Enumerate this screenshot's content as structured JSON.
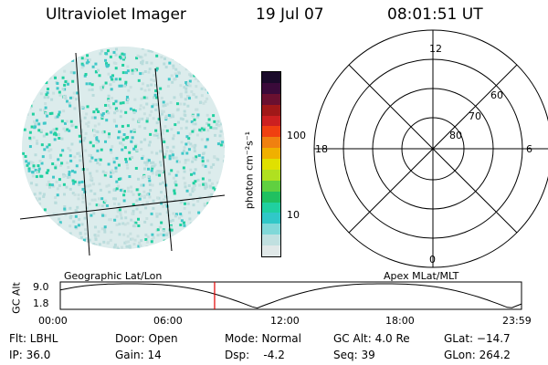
{
  "header": {
    "title": "Ultraviolet Imager",
    "date": "19 Jul 07",
    "time": "08:01:51 UT"
  },
  "colorbar": {
    "label": "photon cm⁻²s⁻¹",
    "ticks": [
      "100",
      "10"
    ],
    "colors": [
      "#1a0a2a",
      "#3a0a3a",
      "#6a1030",
      "#a01818",
      "#cc2020",
      "#f04010",
      "#f08010",
      "#f0b000",
      "#e0e000",
      "#b0e020",
      "#60d040",
      "#20c060",
      "#20d0a0",
      "#30c8c8",
      "#80d8d8",
      "#c0e0e0",
      "#e0e8e8"
    ]
  },
  "polar": {
    "labels_mlt": [
      "12",
      "18",
      "6",
      "0"
    ],
    "labels_lat": [
      "60",
      "70",
      "80"
    ]
  },
  "timeline": {
    "ylabel": "GC Alt",
    "left_title": "Geographic Lat/Lon",
    "right_title": "Apex  MLat/MLT",
    "y_ticks": [
      "9.0",
      "1.8"
    ],
    "x_ticks": [
      "00:00",
      "06:00",
      "12:00",
      "18:00",
      "23:59"
    ],
    "marker_time_hours": 8.03
  },
  "info": {
    "col1": [
      "Flt: LBHL",
      "IP: 36.0"
    ],
    "col2": [
      "Door: Open",
      "Gain: 14"
    ],
    "col3": [
      "Mode: Normal",
      "Dsp:    -4.2"
    ],
    "col4": [
      "GC Alt: 4.0 Re",
      "Seq: 39"
    ],
    "col5": [
      "GLat: −14.7",
      "GLon: 264.2"
    ]
  }
}
